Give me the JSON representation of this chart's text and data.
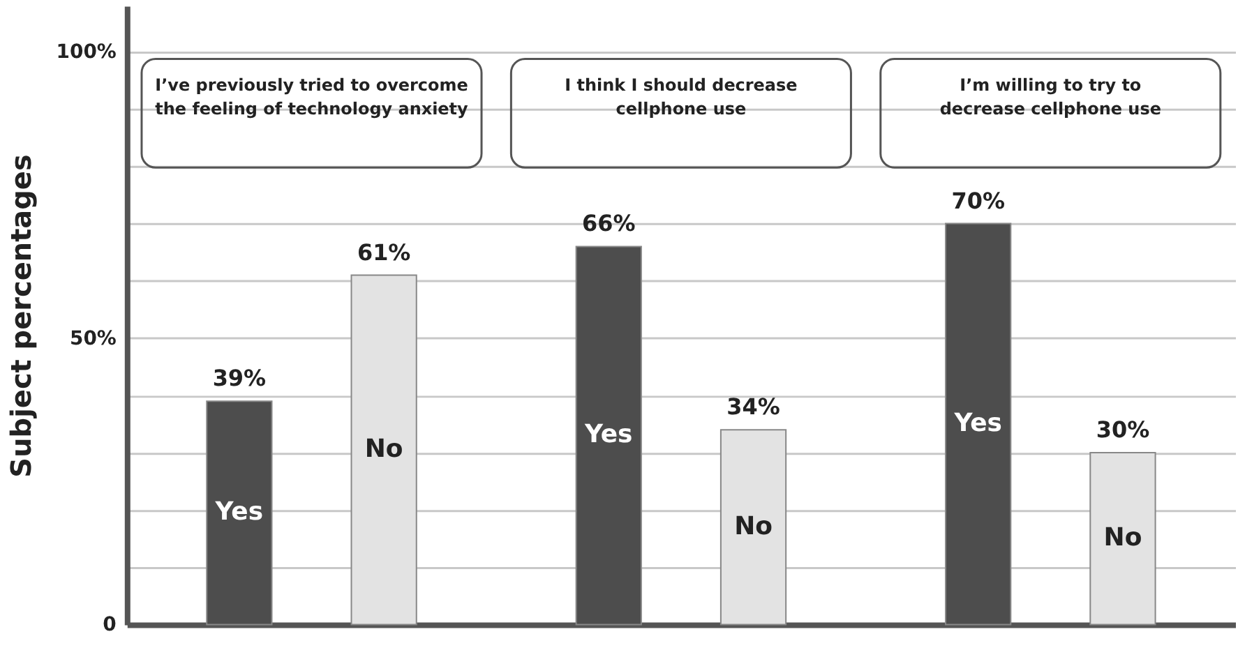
{
  "chart_data": {
    "type": "bar",
    "ylabel": "Subject percentages",
    "categories": [
      "I’ve previously tried to overcome\nthe feeling of technology anxiety",
      "I think I should decrease\ncellphone use",
      "I’m willing to try to\ndecrease cellphone use"
    ],
    "series": [
      {
        "name": "Yes",
        "color": "#4d4d4d",
        "values": [
          39,
          66,
          70
        ],
        "value_labels": [
          "39%",
          "66%",
          "70%"
        ]
      },
      {
        "name": "No",
        "color": "#e3e3e3",
        "values": [
          61,
          34,
          30
        ],
        "value_labels": [
          "61%",
          "34%",
          "30%"
        ]
      }
    ],
    "ylim": [
      0,
      108
    ],
    "yticks": [
      {
        "value": 0,
        "label": "0"
      },
      {
        "value": 10,
        "label": null
      },
      {
        "value": 20,
        "label": null
      },
      {
        "value": 30,
        "label": null
      },
      {
        "value": 40,
        "label": null
      },
      {
        "value": 50,
        "label": "50%"
      },
      {
        "value": 60,
        "label": null
      },
      {
        "value": 70,
        "label": null
      },
      {
        "value": 80,
        "label": null
      },
      {
        "value": 90,
        "label": null
      },
      {
        "value": 100,
        "label": "100%"
      }
    ],
    "grid": "y"
  }
}
